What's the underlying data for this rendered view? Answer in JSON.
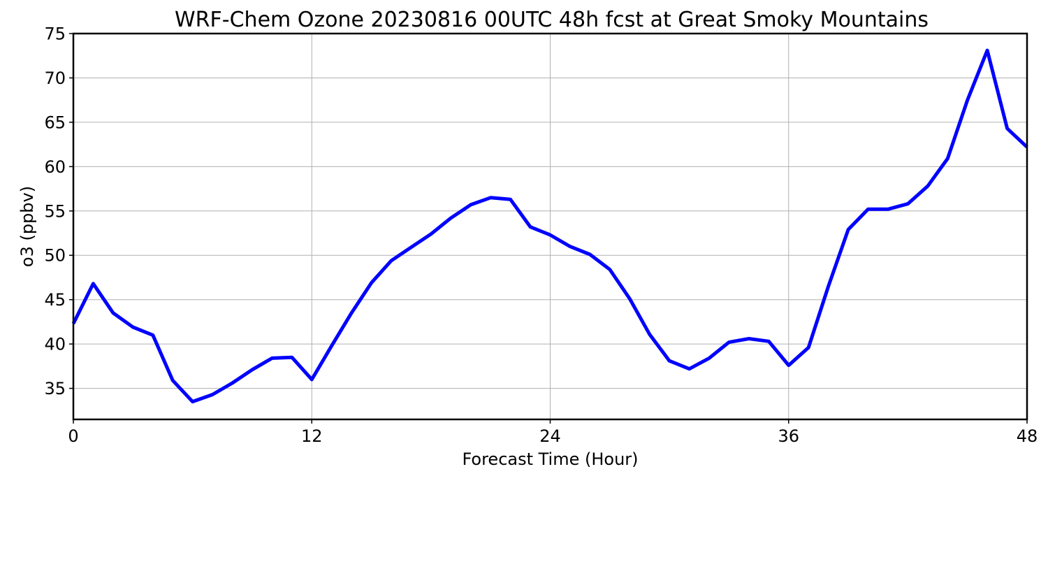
{
  "chart_data": {
    "type": "line",
    "title": "WRF-Chem Ozone  20230816 00UTC 48h fcst at Great Smoky Mountains",
    "xlabel": "Forecast Time (Hour)",
    "ylabel": "o3  (ppbv)",
    "xlim": [
      0,
      48
    ],
    "ylim": [
      31.5,
      75
    ],
    "xticks": [
      0,
      12,
      24,
      36,
      48
    ],
    "yticks": [
      35,
      40,
      45,
      50,
      55,
      60,
      65,
      70,
      75
    ],
    "grid": true,
    "series": [
      {
        "color": "#0000ff",
        "x": [
          0,
          1,
          2,
          3,
          4,
          5,
          6,
          7,
          8,
          9,
          10,
          11,
          12,
          13,
          14,
          15,
          16,
          17,
          18,
          19,
          20,
          21,
          22,
          23,
          24,
          25,
          26,
          27,
          28,
          29,
          30,
          31,
          32,
          33,
          34,
          35,
          36,
          37,
          38,
          39,
          40,
          41,
          42,
          43,
          44,
          45,
          46,
          47,
          48
        ],
        "y": [
          42.3,
          46.8,
          43.5,
          41.9,
          41.0,
          35.9,
          33.5,
          34.3,
          35.6,
          37.1,
          38.4,
          38.5,
          36.0,
          39.8,
          43.5,
          46.9,
          49.4,
          50.9,
          52.4,
          54.2,
          55.7,
          56.5,
          56.3,
          53.2,
          52.3,
          51.0,
          50.1,
          48.4,
          45.1,
          41.1,
          38.1,
          37.2,
          38.4,
          40.2,
          40.6,
          40.3,
          37.6,
          39.6,
          46.5,
          52.9,
          55.2,
          55.2,
          55.8,
          57.8,
          60.9,
          67.5,
          73.1,
          64.3,
          62.2
        ]
      }
    ]
  }
}
